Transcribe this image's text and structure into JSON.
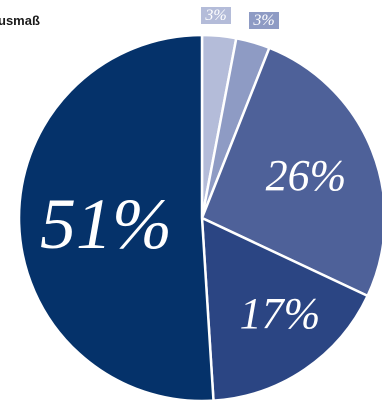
{
  "chart_data": {
    "type": "pie",
    "title": "usmaß",
    "values": [
      3,
      3,
      26,
      17,
      51
    ],
    "labels": [
      "3%",
      "3%",
      "26%",
      "17%",
      "51%"
    ],
    "colors": [
      "#b4bcd9",
      "#8e9bc4",
      "#4e6199",
      "#2b4583",
      "#05326a"
    ]
  }
}
